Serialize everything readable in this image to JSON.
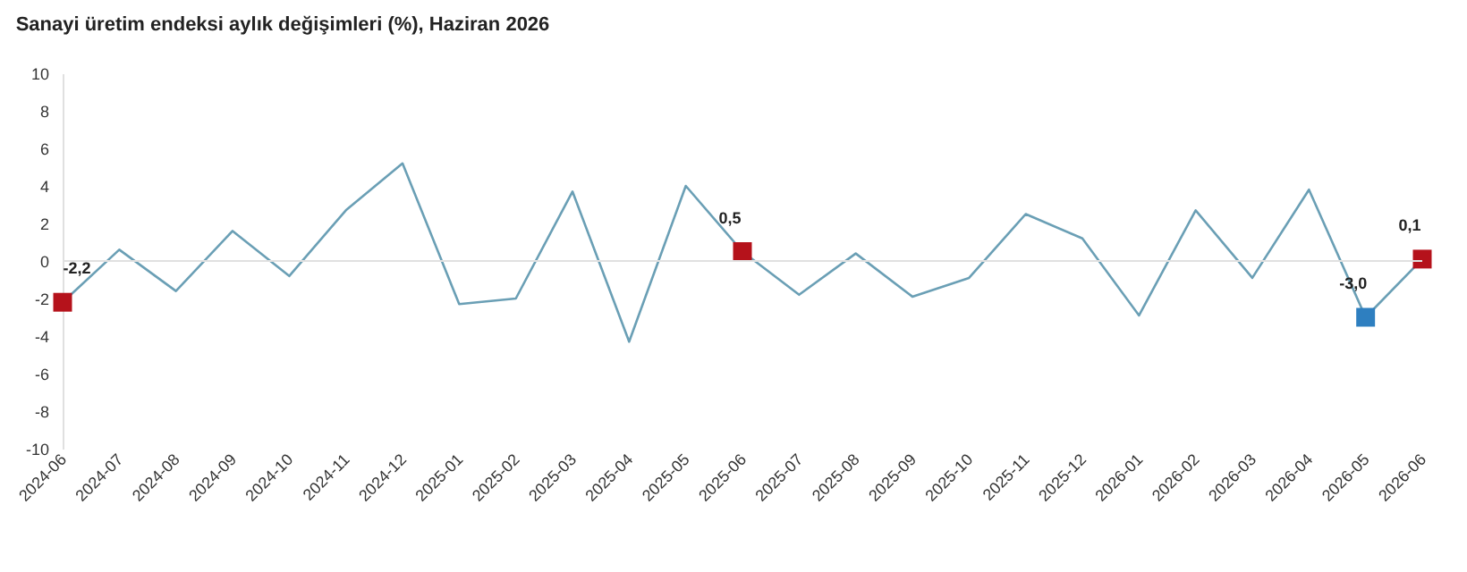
{
  "chart_data": {
    "type": "line",
    "title": "Sanayi üretim endeksi aylık değişimleri (%), Haziran 2026",
    "categories": [
      "2024-06",
      "2024-07",
      "2024-08",
      "2024-09",
      "2024-10",
      "2024-11",
      "2024-12",
      "2025-01",
      "2025-02",
      "2025-03",
      "2025-04",
      "2025-05",
      "2025-06",
      "2025-07",
      "2025-08",
      "2025-09",
      "2025-10",
      "2025-11",
      "2025-12",
      "2026-01",
      "2026-02",
      "2026-03",
      "2026-04",
      "2026-05",
      "2026-06"
    ],
    "series": [
      {
        "color": "#6a9fb5",
        "marker": "none",
        "values": [
          -2.2,
          0.6,
          -1.6,
          1.6,
          -0.8,
          2.7,
          5.2,
          -2.3,
          -2.0,
          3.7,
          -4.3,
          4.0,
          0.5,
          -1.8,
          0.4,
          -1.9,
          -0.9,
          2.5,
          1.2,
          -2.9,
          2.7,
          -0.9,
          3.8,
          -3.0,
          0.1
        ]
      },
      {
        "type": "scatter",
        "marker": "square",
        "colors": [
          "#b5121b",
          null,
          null,
          null,
          null,
          null,
          null,
          null,
          null,
          null,
          null,
          null,
          "#b5121b",
          null,
          null,
          null,
          null,
          null,
          null,
          null,
          null,
          null,
          null,
          "#2e7fc0",
          "#b5121b"
        ],
        "values": [
          -2.2,
          null,
          null,
          null,
          null,
          null,
          null,
          null,
          null,
          null,
          null,
          null,
          0.5,
          null,
          null,
          null,
          null,
          null,
          null,
          null,
          null,
          null,
          null,
          -3.0,
          0.1
        ],
        "value_labels": [
          "-2,2",
          null,
          null,
          null,
          null,
          null,
          null,
          null,
          null,
          null,
          null,
          null,
          "0,5",
          null,
          null,
          null,
          null,
          null,
          null,
          null,
          null,
          null,
          null,
          "-3,0",
          "0,1"
        ]
      }
    ],
    "ylim": [
      -10,
      10
    ],
    "yticks": [
      -10,
      -8,
      -6,
      -4,
      -2,
      0,
      2,
      4,
      6,
      8,
      10
    ],
    "grid": false,
    "ref_lines": [
      {
        "axis": "y",
        "value": 0,
        "color": "#e0e0e0"
      }
    ]
  }
}
